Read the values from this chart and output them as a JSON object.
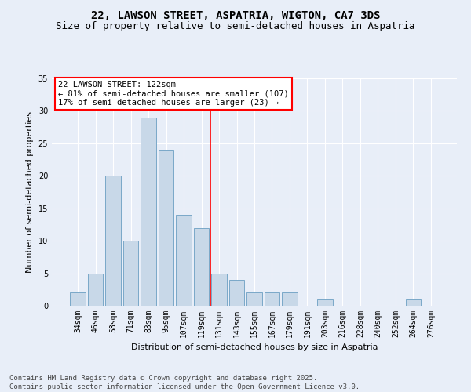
{
  "title": "22, LAWSON STREET, ASPATRIA, WIGTON, CA7 3DS",
  "subtitle": "Size of property relative to semi-detached houses in Aspatria",
  "xlabel": "Distribution of semi-detached houses by size in Aspatria",
  "ylabel": "Number of semi-detached properties",
  "bar_labels": [
    "34sqm",
    "46sqm",
    "58sqm",
    "71sqm",
    "83sqm",
    "95sqm",
    "107sqm",
    "119sqm",
    "131sqm",
    "143sqm",
    "155sqm",
    "167sqm",
    "179sqm",
    "191sqm",
    "203sqm",
    "216sqm",
    "228sqm",
    "240sqm",
    "252sqm",
    "264sqm",
    "276sqm"
  ],
  "bar_values": [
    2,
    5,
    20,
    10,
    29,
    24,
    14,
    12,
    5,
    4,
    2,
    2,
    2,
    0,
    1,
    0,
    0,
    0,
    0,
    1,
    0
  ],
  "bar_color": "#c8d8e8",
  "bar_edge_color": "#7aa8c8",
  "vline_x": 7.5,
  "vline_color": "red",
  "annotation_title": "22 LAWSON STREET: 122sqm",
  "annotation_line2": "← 81% of semi-detached houses are smaller (107)",
  "annotation_line3": "17% of semi-detached houses are larger (23) →",
  "annotation_box_color": "white",
  "annotation_box_edge": "red",
  "ylim": [
    0,
    35
  ],
  "yticks": [
    0,
    5,
    10,
    15,
    20,
    25,
    30,
    35
  ],
  "background_color": "#e8eef8",
  "plot_bg_color": "#e8eef8",
  "footer_line1": "Contains HM Land Registry data © Crown copyright and database right 2025.",
  "footer_line2": "Contains public sector information licensed under the Open Government Licence v3.0.",
  "title_fontsize": 10,
  "subtitle_fontsize": 9,
  "axis_label_fontsize": 8,
  "tick_fontsize": 7,
  "annotation_fontsize": 7.5,
  "footer_fontsize": 6.5
}
